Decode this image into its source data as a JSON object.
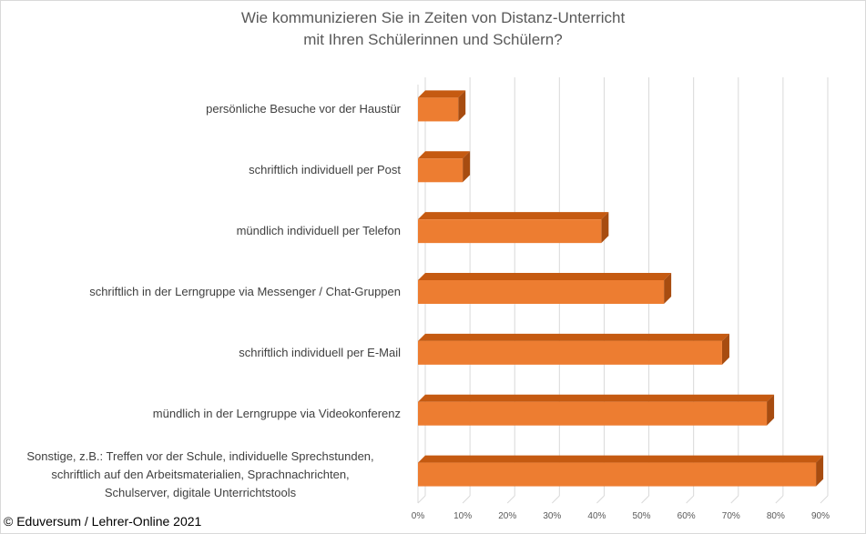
{
  "chart_data": {
    "type": "bar",
    "orientation": "horizontal",
    "style": "3d",
    "title_lines": [
      "Wie kommunizieren Sie in Zeiten von Distanz-Unterricht",
      "mit Ihren Schülerinnen und Schülern?"
    ],
    "categories": [
      "persönliche Besuche vor der Haustür",
      "schriftlich individuell per Post",
      "mündlich individuell per Telefon",
      "schriftlich in der Lerngruppe via Messenger / Chat-Gruppen",
      "schriftlich individuell per E-Mail",
      "mündlich in der Lerngruppe via Videokonferenz",
      "Sonstige, z.B.: Treffen vor der Schule, individuelle Sprechstunden, schriftlich auf den Arbeitsmaterialien, Sprachnachrichten, Schulserver, digitale Unterrichtstools"
    ],
    "category_label_lines": [
      [
        "persönliche Besuche vor der Haustür"
      ],
      [
        "schriftlich individuell per Post"
      ],
      [
        "mündlich individuell per Telefon"
      ],
      [
        "schriftlich in der Lerngruppe via Messenger / Chat-Gruppen"
      ],
      [
        "schriftlich individuell per E-Mail"
      ],
      [
        "mündlich in der Lerngruppe via Videokonferenz"
      ],
      [
        "Sonstige, z.B.: Treffen vor der Schule, individuelle Sprechstunden,",
        "schriftlich auf den Arbeitsmaterialien, Sprachnachrichten,",
        "Schulserver, digitale Unterrichtstools"
      ]
    ],
    "values": [
      9,
      10,
      41,
      55,
      68,
      78,
      89
    ],
    "xlim": [
      0,
      90
    ],
    "xticks": [
      0,
      10,
      20,
      30,
      40,
      50,
      60,
      70,
      80,
      90
    ],
    "xtick_labels": [
      "0%",
      "10%",
      "20%",
      "30%",
      "40%",
      "50%",
      "60%",
      "70%",
      "80%",
      "90%"
    ],
    "grid": true,
    "legend": "none",
    "colors": {
      "bar_front": "#ed7d31",
      "bar_top": "#c55a11",
      "bar_side": "#a74c10",
      "grid": "#d9d9d9"
    }
  },
  "credit": "© Eduversum / Lehrer-Online 2021"
}
